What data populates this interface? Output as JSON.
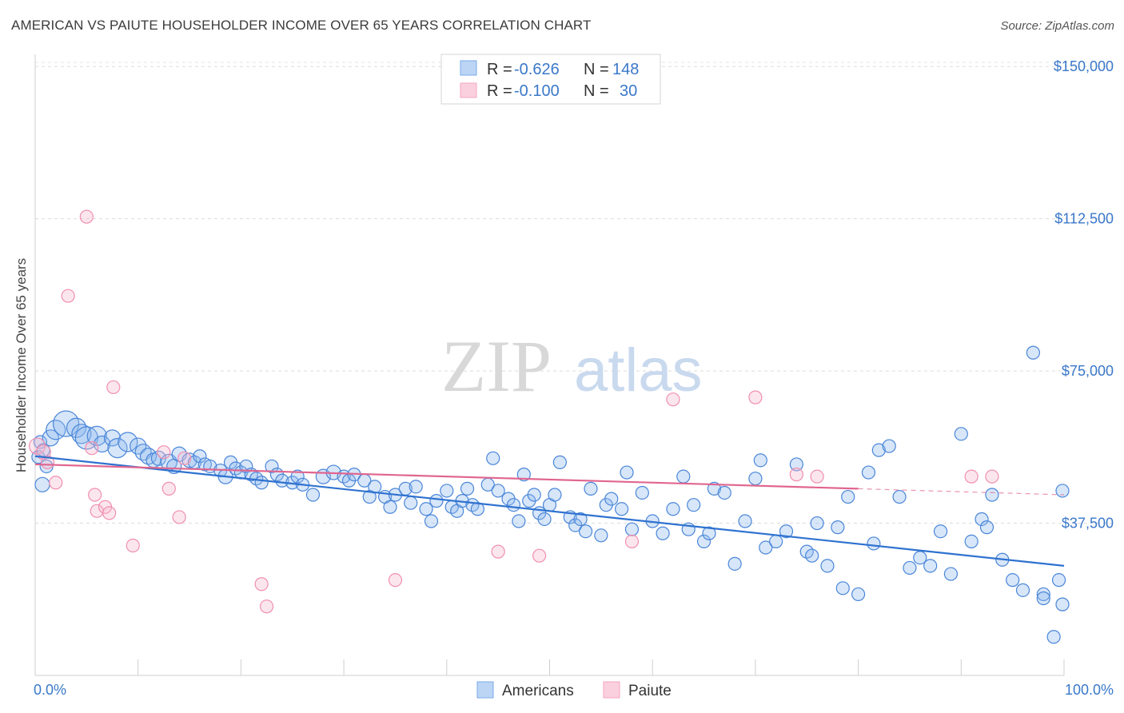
{
  "header": {
    "title": "AMERICAN VS PAIUTE HOUSEHOLDER INCOME OVER 65 YEARS CORRELATION CHART",
    "source": "Source: ZipAtlas.com"
  },
  "watermark": {
    "zip": "ZIP",
    "atlas": "atlas"
  },
  "legend": {
    "rows": [
      {
        "r_label": "R =",
        "r_value": "-0.626",
        "n_label": "N =",
        "n_value": "148",
        "color": "#7aaae8"
      },
      {
        "r_label": "R =",
        "r_value": "-0.100",
        "n_label": "N =",
        "n_value": "30",
        "color": "#f4a6bf"
      }
    ]
  },
  "bottom_legend": [
    {
      "label": "Americans",
      "color": "#7aaae8"
    },
    {
      "label": "Paiute",
      "color": "#f4a6bf"
    }
  ],
  "chart_data": {
    "type": "scatter",
    "title": "AMERICAN VS PAIUTE HOUSEHOLDER INCOME OVER 65 YEARS CORRELATION CHART",
    "xlabel": "",
    "ylabel": "Householder Income Over 65 years",
    "xlim": [
      0,
      100
    ],
    "ylim": [
      0,
      153000
    ],
    "x_tick_labels": [
      "0.0%",
      "100.0%"
    ],
    "y_ticks": [
      37500,
      75000,
      112500,
      150000
    ],
    "y_tick_labels": [
      "$37,500",
      "$75,000",
      "$112,500",
      "$150,000"
    ],
    "grid": true,
    "colors": {
      "americans": "#4a86d8",
      "paiute": "#f08fb0",
      "americans_line": "#2f72d0",
      "paiute_line": "#e0668f"
    },
    "series": [
      {
        "name": "Americans",
        "trend": {
          "x": [
            0,
            100
          ],
          "y": [
            54000,
            27000
          ]
        },
        "points": [
          [
            0.3,
            53800,
            8
          ],
          [
            0.5,
            57500,
            8
          ],
          [
            0.7,
            47000,
            9
          ],
          [
            0.8,
            55500,
            8
          ],
          [
            1.1,
            51500,
            8
          ],
          [
            1.5,
            58500,
            10
          ],
          [
            2,
            60500,
            12
          ],
          [
            3,
            62000,
            16
          ],
          [
            4,
            61000,
            12
          ],
          [
            4.5,
            59500,
            12
          ],
          [
            5,
            58500,
            14
          ],
          [
            6,
            59000,
            12
          ],
          [
            6.5,
            57000,
            10
          ],
          [
            7.5,
            58500,
            10
          ],
          [
            8,
            56000,
            12
          ],
          [
            9,
            57500,
            12
          ],
          [
            10,
            56500,
            10
          ],
          [
            10.5,
            55000,
            10
          ],
          [
            11,
            54000,
            10
          ],
          [
            11.5,
            53000,
            9
          ],
          [
            12,
            53500,
            9
          ],
          [
            13,
            52500,
            10
          ],
          [
            13.5,
            51500,
            9
          ],
          [
            14,
            54500,
            9
          ],
          [
            15,
            53000,
            9
          ],
          [
            15.5,
            52500,
            8
          ],
          [
            16,
            54000,
            8
          ],
          [
            16.5,
            52000,
            8
          ],
          [
            17,
            51500,
            8
          ],
          [
            18,
            50500,
            8
          ],
          [
            18.5,
            49000,
            9
          ],
          [
            19,
            52500,
            8
          ],
          [
            19.5,
            51000,
            8
          ],
          [
            20,
            50000,
            8
          ],
          [
            20.5,
            51500,
            8
          ],
          [
            21,
            49500,
            8
          ],
          [
            21.5,
            48500,
            8
          ],
          [
            22,
            47500,
            8
          ],
          [
            23,
            51500,
            8
          ],
          [
            23.5,
            49500,
            8
          ],
          [
            24,
            48000,
            8
          ],
          [
            25,
            47500,
            8
          ],
          [
            25.5,
            49000,
            8
          ],
          [
            26,
            47000,
            8
          ],
          [
            27,
            44500,
            8
          ],
          [
            28,
            49000,
            9
          ],
          [
            29,
            50000,
            9
          ],
          [
            30,
            49000,
            8
          ],
          [
            30.5,
            48000,
            8
          ],
          [
            31,
            49500,
            8
          ],
          [
            32,
            48000,
            8
          ],
          [
            32.5,
            44000,
            8
          ],
          [
            33,
            46500,
            8
          ],
          [
            34,
            44000,
            8
          ],
          [
            34.5,
            41500,
            8
          ],
          [
            35,
            44500,
            8
          ],
          [
            36,
            46000,
            8
          ],
          [
            36.5,
            42500,
            8
          ],
          [
            37,
            46500,
            8
          ],
          [
            38,
            41000,
            8
          ],
          [
            38.5,
            38000,
            8
          ],
          [
            39,
            43000,
            8
          ],
          [
            40,
            45500,
            8
          ],
          [
            40.5,
            41500,
            8
          ],
          [
            41,
            40500,
            8
          ],
          [
            41.5,
            43000,
            8
          ],
          [
            42,
            46000,
            8
          ],
          [
            42.5,
            42000,
            8
          ],
          [
            43,
            41000,
            8
          ],
          [
            44,
            47000,
            8
          ],
          [
            44.5,
            53500,
            8
          ],
          [
            45,
            45500,
            8
          ],
          [
            46,
            43500,
            8
          ],
          [
            46.5,
            42000,
            8
          ],
          [
            47,
            38000,
            8
          ],
          [
            47.5,
            49500,
            8
          ],
          [
            48,
            43000,
            8
          ],
          [
            48.5,
            44500,
            8
          ],
          [
            49,
            40000,
            8
          ],
          [
            49.5,
            38500,
            8
          ],
          [
            50,
            42000,
            8
          ],
          [
            50.5,
            44500,
            8
          ],
          [
            51,
            52500,
            8
          ],
          [
            52,
            39000,
            8
          ],
          [
            52.5,
            37000,
            8
          ],
          [
            53,
            38500,
            8
          ],
          [
            53.5,
            35500,
            8
          ],
          [
            54,
            46000,
            8
          ],
          [
            55,
            34500,
            8
          ],
          [
            55.5,
            42000,
            8
          ],
          [
            56,
            43500,
            8
          ],
          [
            57,
            41000,
            8
          ],
          [
            57.5,
            50000,
            8
          ],
          [
            58,
            36000,
            8
          ],
          [
            59,
            45000,
            8
          ],
          [
            60,
            38000,
            8
          ],
          [
            61,
            35000,
            8
          ],
          [
            62,
            41000,
            8
          ],
          [
            63,
            49000,
            8
          ],
          [
            63.5,
            36000,
            8
          ],
          [
            64,
            42000,
            8
          ],
          [
            65,
            33000,
            8
          ],
          [
            65.5,
            35000,
            8
          ],
          [
            66,
            46000,
            8
          ],
          [
            67,
            45000,
            8
          ],
          [
            68,
            27500,
            8
          ],
          [
            69,
            38000,
            8
          ],
          [
            70,
            48500,
            8
          ],
          [
            70.5,
            53000,
            8
          ],
          [
            71,
            31500,
            8
          ],
          [
            72,
            33000,
            8
          ],
          [
            73,
            35500,
            8
          ],
          [
            74,
            52000,
            8
          ],
          [
            75,
            30500,
            8
          ],
          [
            75.5,
            29500,
            8
          ],
          [
            76,
            37500,
            8
          ],
          [
            77,
            27000,
            8
          ],
          [
            78,
            36500,
            8
          ],
          [
            78.5,
            21500,
            8
          ],
          [
            79,
            44000,
            8
          ],
          [
            80,
            20000,
            8
          ],
          [
            81,
            50000,
            8
          ],
          [
            81.5,
            32500,
            8
          ],
          [
            82,
            55500,
            8
          ],
          [
            83,
            56500,
            8
          ],
          [
            84,
            44000,
            8
          ],
          [
            85,
            26500,
            8
          ],
          [
            86,
            29000,
            8
          ],
          [
            87,
            27000,
            8
          ],
          [
            88,
            35500,
            8
          ],
          [
            89,
            25000,
            8
          ],
          [
            90,
            59500,
            8
          ],
          [
            91,
            33000,
            8
          ],
          [
            92,
            38500,
            8
          ],
          [
            92.5,
            36500,
            8
          ],
          [
            93,
            44500,
            8
          ],
          [
            94,
            28500,
            8
          ],
          [
            95,
            23500,
            8
          ],
          [
            96,
            21000,
            8
          ],
          [
            97,
            79500,
            8
          ],
          [
            98,
            20000,
            8
          ],
          [
            99,
            9500,
            8
          ],
          [
            100,
            17500,
            8
          ],
          [
            101,
            45500,
            8
          ],
          [
            98,
            19000,
            8
          ],
          [
            99.5,
            23500,
            8
          ]
        ]
      },
      {
        "name": "Paiute",
        "trend": {
          "x": [
            0,
            80
          ],
          "y": [
            52000,
            46000
          ],
          "dashed_to": [
            100,
            44500
          ]
        },
        "points": [
          [
            0.2,
            56500,
            10
          ],
          [
            0.8,
            55000,
            9
          ],
          [
            1.2,
            52500,
            8
          ],
          [
            2,
            47500,
            8
          ],
          [
            3.2,
            93500,
            8
          ],
          [
            5,
            113000,
            8
          ],
          [
            5.5,
            56000,
            8
          ],
          [
            5.8,
            44500,
            8
          ],
          [
            6,
            40500,
            8
          ],
          [
            6.8,
            41500,
            8
          ],
          [
            7.2,
            40000,
            8
          ],
          [
            7.6,
            71000,
            8
          ],
          [
            9.5,
            32000,
            8
          ],
          [
            12.5,
            55000,
            8
          ],
          [
            13,
            46000,
            8
          ],
          [
            14,
            39000,
            8
          ],
          [
            14.5,
            53500,
            8
          ],
          [
            22,
            22500,
            8
          ],
          [
            22.5,
            17000,
            8
          ],
          [
            35,
            23500,
            8
          ],
          [
            45,
            30500,
            8
          ],
          [
            49,
            29500,
            8
          ],
          [
            58,
            33000,
            8
          ],
          [
            62,
            68000,
            8
          ],
          [
            70,
            68500,
            8
          ],
          [
            74,
            49500,
            8
          ],
          [
            76,
            49000,
            8
          ],
          [
            91,
            49000,
            8
          ],
          [
            93,
            49000,
            8
          ]
        ]
      }
    ]
  }
}
